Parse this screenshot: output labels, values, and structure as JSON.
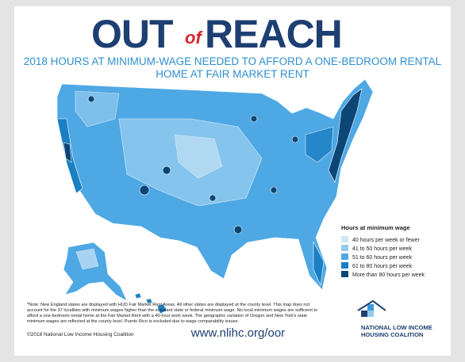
{
  "header": {
    "title_out": "OUT",
    "title_of": "of",
    "title_reach": "REACH",
    "subtitle_lines": [
      "2018 HOURS AT MINIMUM-WAGE NEEDED TO AFFORD A ONE-BEDROOM RENTAL",
      "HOME AT FAIR MARKET RENT"
    ]
  },
  "legend": {
    "title": "Hours at minimum wage",
    "items": [
      {
        "label": "40 hours per week or fewer",
        "color": "#cfe6f6"
      },
      {
        "label": "41 to 50 hours per week",
        "color": "#93cbef"
      },
      {
        "label": "51 to 60 hours per week",
        "color": "#4ea8e4"
      },
      {
        "label": "61 to 80 hours per week",
        "color": "#1b7fc3"
      },
      {
        "label": "More than 80 hours per week",
        "color": "#0c4677"
      }
    ]
  },
  "footer": {
    "note_lines": [
      "*Note: New England states are displayed with HUD Fair Market Rent Areas. All other states are displayed at the county level. This map does not",
      "account for the 37 localities with minimum wages higher than the standard state or federal minimum wage. No local minimum wages are sufficient to",
      "afford a one-bedroom rental home at the Fair Market Rent with a 40-hour work week. The geographic variation of Oregon and New York's state",
      "minimum wages are reflected at the county level. Puerto Rico is excluded due to wage comparability issues."
    ],
    "copyright": "©2018 National Low Income Housing Coalition",
    "url": "www.nlihc.org/oor",
    "logo_lines": [
      "NATIONAL LOW INCOME",
      "HOUSING COALITION"
    ]
  }
}
